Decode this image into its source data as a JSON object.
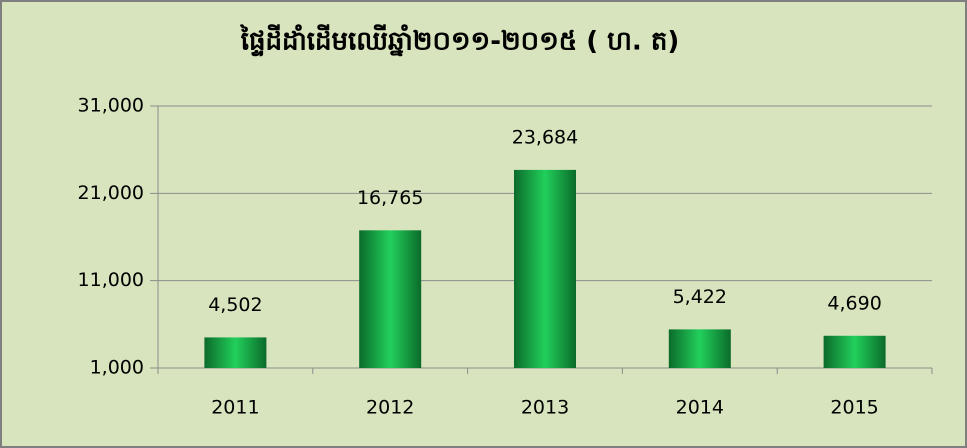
{
  "chart_data": {
    "type": "bar",
    "title": "ផ្ទៃដីដាំដើមឈើឆ្នាំ២០១១-២០១៥ ( ហ. ត)",
    "categories": [
      "2011",
      "2012",
      "2013",
      "2014",
      "2015"
    ],
    "values": [
      4502,
      16765,
      23684,
      5422,
      4690
    ],
    "value_labels": [
      "4,502",
      "16,765",
      "23,684",
      "5,422",
      "4,690"
    ],
    "color": "#1aa84a",
    "ylim": [
      1000,
      31000
    ],
    "yticks": [
      {
        "value": 1000,
        "label": "1,000"
      },
      {
        "value": 11000,
        "label": "11,000"
      },
      {
        "value": 21000,
        "label": "21,000"
      },
      {
        "value": 31000,
        "label": "31,000"
      }
    ],
    "grid": true
  }
}
